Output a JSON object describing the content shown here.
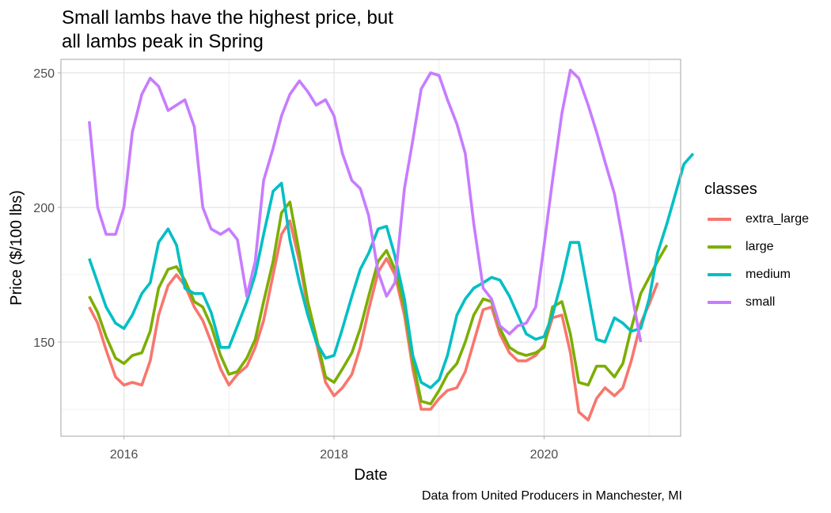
{
  "title": "Small lambs have the highest price, but\nall lambs peak in Spring",
  "caption": "Data from United Producers in Manchester, MI",
  "chart_data": {
    "type": "line",
    "title": "Small lambs have the highest price, but\nall lambs peak in Spring",
    "xlabel": "Date",
    "ylabel": "Price ($/100 lbs)",
    "xlim": [
      2015.4,
      2021.3
    ],
    "ylim": [
      115,
      255
    ],
    "x_ticks": [
      2016,
      2018,
      2020
    ],
    "x_tick_labels": [
      "2016",
      "2018",
      "2020"
    ],
    "y_ticks": [
      150,
      200,
      250
    ],
    "y_tick_labels": [
      "150",
      "200",
      "250"
    ],
    "grid": true,
    "legend_title": "classes",
    "legend_position": "right",
    "series": [
      {
        "name": "extra_large",
        "color": "#F8766D",
        "points": [
          [
            2015.67,
            163
          ],
          [
            2015.75,
            157
          ],
          [
            2015.83,
            147
          ],
          [
            2015.92,
            137
          ],
          [
            2016.0,
            134
          ],
          [
            2016.08,
            135
          ],
          [
            2016.17,
            134
          ],
          [
            2016.25,
            143
          ],
          [
            2016.33,
            160
          ],
          [
            2016.42,
            171
          ],
          [
            2016.5,
            175
          ],
          [
            2016.58,
            171
          ],
          [
            2016.67,
            163
          ],
          [
            2016.75,
            158
          ],
          [
            2016.83,
            150
          ],
          [
            2016.92,
            140
          ],
          [
            2017.0,
            134
          ],
          [
            2017.08,
            138
          ],
          [
            2017.17,
            141
          ],
          [
            2017.25,
            148
          ],
          [
            2017.33,
            158
          ],
          [
            2017.42,
            175
          ],
          [
            2017.5,
            190
          ],
          [
            2017.58,
            195
          ],
          [
            2017.67,
            180
          ],
          [
            2017.75,
            163
          ],
          [
            2017.83,
            150
          ],
          [
            2017.92,
            135
          ],
          [
            2018.0,
            130
          ],
          [
            2018.08,
            133
          ],
          [
            2018.17,
            138
          ],
          [
            2018.25,
            148
          ],
          [
            2018.33,
            162
          ],
          [
            2018.42,
            176
          ],
          [
            2018.5,
            181
          ],
          [
            2018.58,
            175
          ],
          [
            2018.67,
            160
          ],
          [
            2018.75,
            140
          ],
          [
            2018.83,
            125
          ],
          [
            2018.92,
            125
          ],
          [
            2019.0,
            129
          ],
          [
            2019.08,
            132
          ],
          [
            2019.17,
            133
          ],
          [
            2019.25,
            139
          ],
          [
            2019.33,
            150
          ],
          [
            2019.42,
            162
          ],
          [
            2019.5,
            163
          ],
          [
            2019.58,
            153
          ],
          [
            2019.67,
            146
          ],
          [
            2019.75,
            143
          ],
          [
            2019.83,
            143
          ],
          [
            2019.92,
            145
          ],
          [
            2020.0,
            149
          ],
          [
            2020.08,
            159
          ],
          [
            2020.17,
            160
          ],
          [
            2020.25,
            146
          ],
          [
            2020.33,
            124
          ],
          [
            2020.42,
            121
          ],
          [
            2020.5,
            129
          ],
          [
            2020.58,
            133
          ],
          [
            2020.67,
            130
          ],
          [
            2020.75,
            133
          ],
          [
            2020.83,
            143
          ],
          [
            2020.92,
            157
          ],
          [
            2021.0,
            164
          ],
          [
            2021.08,
            172
          ]
        ]
      },
      {
        "name": "large",
        "color": "#7CAE00",
        "points": [
          [
            2015.67,
            167
          ],
          [
            2015.75,
            161
          ],
          [
            2015.83,
            152
          ],
          [
            2015.92,
            144
          ],
          [
            2016.0,
            142
          ],
          [
            2016.08,
            145
          ],
          [
            2016.17,
            146
          ],
          [
            2016.25,
            154
          ],
          [
            2016.33,
            170
          ],
          [
            2016.42,
            177
          ],
          [
            2016.5,
            178
          ],
          [
            2016.58,
            173
          ],
          [
            2016.67,
            165
          ],
          [
            2016.75,
            163
          ],
          [
            2016.83,
            156
          ],
          [
            2016.92,
            145
          ],
          [
            2017.0,
            138
          ],
          [
            2017.08,
            139
          ],
          [
            2017.17,
            144
          ],
          [
            2017.25,
            151
          ],
          [
            2017.33,
            165
          ],
          [
            2017.42,
            180
          ],
          [
            2017.5,
            198
          ],
          [
            2017.58,
            202
          ],
          [
            2017.67,
            183
          ],
          [
            2017.75,
            165
          ],
          [
            2017.83,
            152
          ],
          [
            2017.92,
            137
          ],
          [
            2018.0,
            135
          ],
          [
            2018.08,
            140
          ],
          [
            2018.17,
            146
          ],
          [
            2018.25,
            155
          ],
          [
            2018.33,
            167
          ],
          [
            2018.42,
            180
          ],
          [
            2018.5,
            184
          ],
          [
            2018.58,
            177
          ],
          [
            2018.67,
            163
          ],
          [
            2018.75,
            143
          ],
          [
            2018.83,
            128
          ],
          [
            2018.92,
            127
          ],
          [
            2019.0,
            132
          ],
          [
            2019.08,
            138
          ],
          [
            2019.17,
            142
          ],
          [
            2019.25,
            150
          ],
          [
            2019.33,
            160
          ],
          [
            2019.42,
            166
          ],
          [
            2019.5,
            165
          ],
          [
            2019.58,
            155
          ],
          [
            2019.67,
            148
          ],
          [
            2019.75,
            146
          ],
          [
            2019.83,
            145
          ],
          [
            2019.92,
            146
          ],
          [
            2020.0,
            148
          ],
          [
            2020.08,
            163
          ],
          [
            2020.17,
            165
          ],
          [
            2020.25,
            153
          ],
          [
            2020.33,
            135
          ],
          [
            2020.42,
            134
          ],
          [
            2020.5,
            141
          ],
          [
            2020.58,
            141
          ],
          [
            2020.67,
            137
          ],
          [
            2020.75,
            142
          ],
          [
            2020.83,
            155
          ],
          [
            2020.92,
            168
          ],
          [
            2021.0,
            174
          ],
          [
            2021.08,
            180
          ],
          [
            2021.17,
            186
          ]
        ]
      },
      {
        "name": "medium",
        "color": "#00BFC4",
        "points": [
          [
            2015.67,
            181
          ],
          [
            2015.75,
            172
          ],
          [
            2015.83,
            163
          ],
          [
            2015.92,
            157
          ],
          [
            2016.0,
            155
          ],
          [
            2016.08,
            160
          ],
          [
            2016.17,
            168
          ],
          [
            2016.25,
            172
          ],
          [
            2016.33,
            187
          ],
          [
            2016.42,
            192
          ],
          [
            2016.5,
            186
          ],
          [
            2016.58,
            170
          ],
          [
            2016.67,
            168
          ],
          [
            2016.75,
            168
          ],
          [
            2016.83,
            161
          ],
          [
            2016.92,
            148
          ],
          [
            2017.0,
            148
          ],
          [
            2017.08,
            156
          ],
          [
            2017.17,
            165
          ],
          [
            2017.25,
            175
          ],
          [
            2017.33,
            190
          ],
          [
            2017.42,
            206
          ],
          [
            2017.5,
            209
          ],
          [
            2017.58,
            188
          ],
          [
            2017.67,
            172
          ],
          [
            2017.75,
            160
          ],
          [
            2017.83,
            150
          ],
          [
            2017.92,
            144
          ],
          [
            2018.0,
            145
          ],
          [
            2018.08,
            155
          ],
          [
            2018.17,
            167
          ],
          [
            2018.25,
            177
          ],
          [
            2018.33,
            183
          ],
          [
            2018.42,
            192
          ],
          [
            2018.5,
            193
          ],
          [
            2018.58,
            182
          ],
          [
            2018.67,
            166
          ],
          [
            2018.75,
            145
          ],
          [
            2018.83,
            135
          ],
          [
            2018.92,
            133
          ],
          [
            2019.0,
            136
          ],
          [
            2019.08,
            145
          ],
          [
            2019.17,
            160
          ],
          [
            2019.25,
            166
          ],
          [
            2019.33,
            170
          ],
          [
            2019.42,
            172
          ],
          [
            2019.5,
            174
          ],
          [
            2019.58,
            173
          ],
          [
            2019.67,
            167
          ],
          [
            2019.75,
            160
          ],
          [
            2019.83,
            153
          ],
          [
            2019.92,
            151
          ],
          [
            2020.0,
            152
          ],
          [
            2020.08,
            160
          ],
          [
            2020.17,
            173
          ],
          [
            2020.25,
            187
          ],
          [
            2020.33,
            187
          ],
          [
            2020.42,
            168
          ],
          [
            2020.5,
            151
          ],
          [
            2020.58,
            150
          ],
          [
            2020.67,
            159
          ],
          [
            2020.75,
            157
          ],
          [
            2020.83,
            154
          ],
          [
            2020.92,
            155
          ],
          [
            2021.0,
            166
          ],
          [
            2021.08,
            183
          ],
          [
            2021.17,
            194
          ],
          [
            2021.25,
            205
          ],
          [
            2021.33,
            216
          ],
          [
            2021.42,
            220
          ]
        ]
      },
      {
        "name": "small",
        "color": "#C77CFF",
        "points": [
          [
            2015.67,
            232
          ],
          [
            2015.75,
            200
          ],
          [
            2015.83,
            190
          ],
          [
            2015.92,
            190
          ],
          [
            2016.0,
            200
          ],
          [
            2016.08,
            228
          ],
          [
            2016.17,
            242
          ],
          [
            2016.25,
            248
          ],
          [
            2016.33,
            245
          ],
          [
            2016.42,
            236
          ],
          [
            2016.5,
            238
          ],
          [
            2016.58,
            240
          ],
          [
            2016.67,
            230
          ],
          [
            2016.75,
            200
          ],
          [
            2016.83,
            192
          ],
          [
            2016.92,
            190
          ],
          [
            2017.0,
            192
          ],
          [
            2017.08,
            188
          ],
          [
            2017.17,
            167
          ],
          [
            2017.25,
            180
          ],
          [
            2017.33,
            210
          ],
          [
            2017.42,
            222
          ],
          [
            2017.5,
            234
          ],
          [
            2017.58,
            242
          ],
          [
            2017.67,
            247
          ],
          [
            2017.75,
            243
          ],
          [
            2017.83,
            238
          ],
          [
            2017.92,
            240
          ],
          [
            2018.0,
            234
          ],
          [
            2018.08,
            220
          ],
          [
            2018.17,
            210
          ],
          [
            2018.25,
            207
          ],
          [
            2018.33,
            197
          ],
          [
            2018.42,
            176
          ],
          [
            2018.5,
            167
          ],
          [
            2018.58,
            172
          ],
          [
            2018.67,
            207
          ],
          [
            2018.75,
            225
          ],
          [
            2018.83,
            244
          ],
          [
            2018.92,
            250
          ],
          [
            2019.0,
            249
          ],
          [
            2019.08,
            240
          ],
          [
            2019.17,
            231
          ],
          [
            2019.25,
            220
          ],
          [
            2019.33,
            194
          ],
          [
            2019.42,
            170
          ],
          [
            2019.5,
            166
          ],
          [
            2019.58,
            156
          ],
          [
            2019.67,
            153
          ],
          [
            2019.75,
            156
          ],
          [
            2019.83,
            157
          ],
          [
            2019.92,
            163
          ],
          [
            2020.0,
            186
          ],
          [
            2020.08,
            210
          ],
          [
            2020.17,
            235
          ],
          [
            2020.25,
            251
          ],
          [
            2020.33,
            248
          ],
          [
            2020.42,
            238
          ],
          [
            2020.5,
            228
          ],
          [
            2020.58,
            217
          ],
          [
            2020.67,
            205
          ],
          [
            2020.75,
            188
          ],
          [
            2020.83,
            169
          ],
          [
            2020.92,
            150
          ]
        ]
      }
    ]
  }
}
